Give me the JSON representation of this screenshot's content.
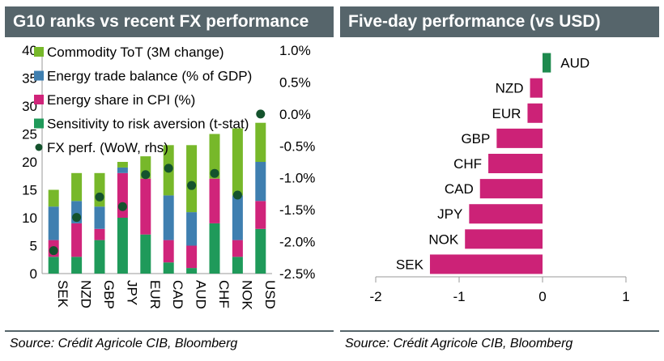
{
  "left_panel": {
    "title": "G10 ranks vs recent FX performance",
    "source": "Source: Crédit Agricole CIB, Bloomberg"
  },
  "right_panel": {
    "title": "Five-day performance (vs USD)",
    "source": "Source: Crédit Agricole CIB, Bloomberg"
  },
  "colors": {
    "commodity_tot": "#77b82a",
    "energy_trade_balance": "#3f7fb0",
    "energy_share_cpi": "#d0247a",
    "risk_sensitivity": "#1f9a5a",
    "fx_perf_marker": "#14532d",
    "positive_bar": "#1e8a4e",
    "negative_bar": "#cc2277",
    "header_bg": "#56656b"
  },
  "chart_data": [
    {
      "type": "bar",
      "stacked": true,
      "categories": [
        "SEK",
        "NZD",
        "GBP",
        "JPY",
        "EUR",
        "CAD",
        "AUD",
        "CHF",
        "NOK",
        "USD"
      ],
      "series": [
        {
          "name": "Sensitivity to risk aversion (t-stat)",
          "values": [
            3,
            3,
            6,
            10,
            7,
            2,
            1,
            9,
            3,
            8
          ]
        },
        {
          "name": "Energy share in CPI (%)",
          "values": [
            3,
            6,
            2,
            8,
            10,
            4,
            4,
            8,
            3,
            5
          ]
        },
        {
          "name": "Energy trade balance (% of GDP)",
          "values": [
            6,
            4,
            4,
            1,
            0,
            8,
            6,
            0,
            8,
            7
          ]
        },
        {
          "name": "Commodity ToT (3M change)",
          "values": [
            3,
            5,
            6,
            1,
            4,
            9,
            12,
            8,
            12,
            7
          ]
        }
      ],
      "overlay": {
        "name": "FX perf. (WoW, rhs)",
        "type": "scatter",
        "values": [
          -2.14,
          -1.62,
          -1.3,
          -1.45,
          -0.95,
          -0.85,
          -1.12,
          -0.93,
          -1.27,
          0.0
        ]
      },
      "ylim": [
        0,
        40
      ],
      "yticks": [
        "0",
        "5",
        "10",
        "15",
        "20",
        "25",
        "30",
        "35",
        "40"
      ],
      "y2lim": [
        -2.5,
        1.0
      ],
      "y2ticks": [
        "-2.5%",
        "-2.0%",
        "-1.5%",
        "-1.0%",
        "-0.5%",
        "0.0%",
        "0.5%",
        "1.0%"
      ],
      "legend_position": "top-left"
    },
    {
      "type": "bar",
      "orientation": "horizontal",
      "categories": [
        "AUD",
        "NZD",
        "EUR",
        "GBP",
        "CHF",
        "CAD",
        "JPY",
        "NOK",
        "SEK"
      ],
      "values": [
        0.1,
        -0.15,
        -0.18,
        -0.55,
        -0.65,
        -0.75,
        -0.88,
        -0.93,
        -1.35
      ],
      "xlim": [
        -2,
        1
      ],
      "xticks": [
        "-2",
        "-1",
        "0",
        "1"
      ]
    }
  ]
}
